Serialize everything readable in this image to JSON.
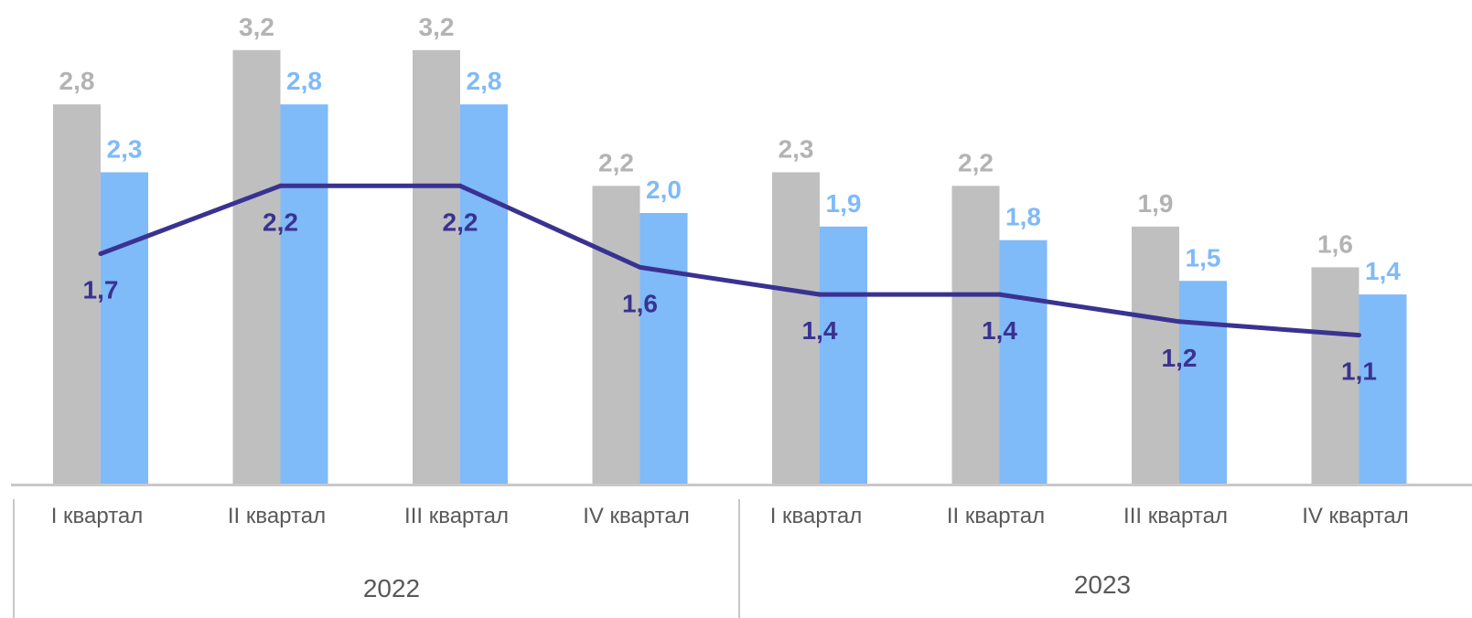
{
  "chart_data": {
    "type": "bar",
    "categories": [
      "I квартал",
      "II квартал",
      "III квартал",
      "IV квартал",
      "I квартал",
      "II квартал",
      "III квартал",
      "IV квартал"
    ],
    "groups": [
      {
        "label": "2022",
        "span": [
          0,
          3
        ]
      },
      {
        "label": "2023",
        "span": [
          4,
          7
        ]
      }
    ],
    "series": [
      {
        "type": "bar",
        "color": "#bfbfbf",
        "label_color": "#b3b3b3",
        "values": [
          2.8,
          3.2,
          3.2,
          2.2,
          2.3,
          2.2,
          1.9,
          1.6
        ],
        "labels": [
          "2,8",
          "3,2",
          "3,2",
          "2,2",
          "2,3",
          "2,2",
          "1,9",
          "1,6"
        ]
      },
      {
        "type": "bar",
        "color": "#7fbaf9",
        "label_color": "#7fbaf9",
        "values": [
          2.3,
          2.8,
          2.8,
          2.0,
          1.9,
          1.8,
          1.5,
          1.4
        ],
        "labels": [
          "2,3",
          "2,8",
          "2,8",
          "2,0",
          "1,9",
          "1,8",
          "1,5",
          "1,4"
        ]
      },
      {
        "type": "line",
        "color": "#3a3291",
        "label_color": "#3a3291",
        "values": [
          1.7,
          2.2,
          2.2,
          1.6,
          1.4,
          1.4,
          1.2,
          1.1
        ],
        "labels": [
          "1,7",
          "2,2",
          "2,2",
          "1,6",
          "1,4",
          "1,4",
          "1,2",
          "1,1"
        ]
      }
    ],
    "ylim": [
      0,
      3.6
    ],
    "grid": false,
    "axis_color": "#c8c8c8",
    "tick_color": "#595959"
  }
}
